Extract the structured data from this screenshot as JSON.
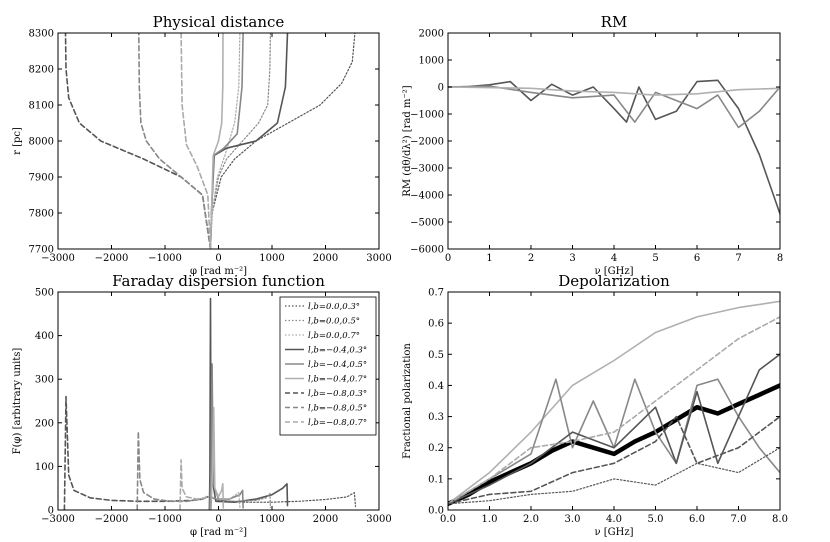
{
  "chart_data": [
    {
      "id": "physical",
      "type": "line",
      "title": "Physical distance",
      "xlabel": "φ [rad m⁻²]",
      "ylabel": "r [pc]",
      "xlim": [
        -3000,
        3000
      ],
      "ylim": [
        7700,
        8300
      ],
      "xticks": [
        -3000,
        -2000,
        -1000,
        0,
        1000,
        2000,
        3000
      ],
      "yticks": [
        7700,
        7800,
        7900,
        8000,
        8100,
        8200,
        8300
      ],
      "series": [
        {
          "name": "l,b=0.0,0.3°",
          "x": [
            -150,
            -120,
            50,
            300,
            700,
            1300,
            1900,
            2300,
            2500,
            2550
          ],
          "y": [
            7700,
            7800,
            7900,
            7950,
            8000,
            8050,
            8100,
            8160,
            8220,
            8300
          ]
        },
        {
          "name": "l,b=0.0,0.5°",
          "x": [
            -150,
            -120,
            0,
            150,
            450,
            750,
            920,
            960,
            970
          ],
          "y": [
            7700,
            7800,
            7900,
            7950,
            8000,
            8050,
            8100,
            8200,
            8300
          ]
        },
        {
          "name": "l,b=0.0,0.7°",
          "x": [
            -150,
            -120,
            -20,
            120,
            300,
            380,
            400
          ],
          "y": [
            7700,
            7800,
            7900,
            7960,
            8050,
            8150,
            8300
          ]
        },
        {
          "name": "l,b=-0.4,0.3°",
          "x": [
            -150,
            -130,
            -80,
            150,
            700,
            1100,
            1250,
            1290
          ],
          "y": [
            7700,
            7800,
            7960,
            7980,
            8000,
            8050,
            8150,
            8300
          ]
        },
        {
          "name": "l,b=-0.4,0.5°",
          "x": [
            -150,
            -130,
            -90,
            100,
            350,
            440,
            460
          ],
          "y": [
            7700,
            7800,
            7960,
            7980,
            8020,
            8150,
            8300
          ]
        },
        {
          "name": "l,b=-0.4,0.7°",
          "x": [
            -150,
            -130,
            -100,
            0,
            60,
            80,
            85
          ],
          "y": [
            7700,
            7800,
            7960,
            8000,
            8050,
            8150,
            8300
          ]
        },
        {
          "name": "l,b=-0.8,0.3°",
          "x": [
            -150,
            -300,
            -700,
            -1400,
            -2200,
            -2600,
            -2800,
            -2850,
            -2860
          ],
          "y": [
            7700,
            7850,
            7900,
            7950,
            8000,
            8050,
            8120,
            8200,
            8300
          ]
        },
        {
          "name": "l,b=-0.8,0.5°",
          "x": [
            -150,
            -300,
            -700,
            -1100,
            -1350,
            -1450,
            -1480,
            -1490
          ],
          "y": [
            7700,
            7850,
            7900,
            7950,
            8000,
            8050,
            8150,
            8300
          ]
        },
        {
          "name": "l,b=-0.8,0.7°",
          "x": [
            -150,
            -200,
            -400,
            -600,
            -680,
            -700
          ],
          "y": [
            7700,
            7850,
            7930,
            7990,
            8100,
            8300
          ]
        }
      ]
    },
    {
      "id": "rm",
      "type": "line",
      "title": "RM",
      "xlabel": "ν [GHz]",
      "ylabel": "RM (dθ/dλ²) [rad m⁻²]",
      "xlim": [
        0,
        8
      ],
      "ylim": [
        -6000,
        2000
      ],
      "xticks": [
        0,
        1,
        2,
        3,
        4,
        5,
        6,
        7,
        8
      ],
      "yticks": [
        -6000,
        -5000,
        -4000,
        -3000,
        -2000,
        -1000,
        0,
        1000,
        2000
      ],
      "series": [
        {
          "name": "l,b=-0.4,0.3°",
          "x": [
            0,
            0.5,
            1,
            1.5,
            2,
            2.5,
            3,
            3.5,
            4,
            4.3,
            4.6,
            5,
            5.5,
            6,
            6.5,
            7,
            7.5,
            8
          ],
          "y": [
            0,
            20,
            80,
            200,
            -500,
            100,
            -300,
            0,
            -800,
            -1300,
            0,
            -1200,
            -900,
            200,
            250,
            -800,
            -2500,
            -4700
          ]
        },
        {
          "name": "l,b=-0.4,0.5°",
          "x": [
            0,
            1,
            2,
            3,
            4,
            4.5,
            5,
            5.5,
            6,
            6.5,
            7,
            7.5,
            8
          ],
          "y": [
            0,
            30,
            -200,
            -400,
            -300,
            -1300,
            -200,
            -500,
            -800,
            -300,
            -1500,
            -900,
            0
          ]
        },
        {
          "name": "l,b=-0.4,0.7°",
          "x": [
            0,
            2,
            3,
            4,
            5,
            6,
            7,
            8
          ],
          "y": [
            0,
            -50,
            -150,
            -200,
            -300,
            -250,
            -100,
            -50
          ]
        }
      ]
    },
    {
      "id": "faraday",
      "type": "line",
      "title": "Faraday dispersion function",
      "xlabel": "φ [rad m⁻²]",
      "ylabel": "F(φ) [arbitrary units]",
      "xlim": [
        -3000,
        3000
      ],
      "ylim": [
        0,
        500
      ],
      "xticks": [
        -3000,
        -2000,
        -1000,
        0,
        1000,
        2000,
        3000
      ],
      "yticks": [
        0,
        100,
        200,
        300,
        400,
        500
      ],
      "legend": [
        "l,b=0.0,0.3°",
        "l,b=0.0,0.5°",
        "l,b=0.0,0.7°",
        "l,b=−0.4,0.3°",
        "l,b=−0.4,0.5°",
        "l,b=−0.4,0.7°",
        "l,b=−0.8,0.3°",
        "l,b=−0.8,0.5°",
        "l,b=−0.8,0.7°"
      ],
      "series": [
        {
          "name": "l,b=-0.8,0.3°",
          "x": [
            -2880,
            -2850,
            -2800,
            -2700,
            -2400,
            -2000,
            -1500,
            -1000,
            -500,
            -300,
            -200
          ],
          "y": [
            0,
            260,
            80,
            45,
            28,
            22,
            20,
            20,
            22,
            25,
            30
          ]
        },
        {
          "name": "l,b=-0.8,0.5°",
          "x": [
            -1520,
            -1500,
            -1470,
            -1400,
            -1200,
            -900,
            -600,
            -300,
            -200
          ],
          "y": [
            0,
            180,
            70,
            40,
            25,
            20,
            20,
            25,
            30
          ]
        },
        {
          "name": "l,b=-0.8,0.7°",
          "x": [
            -720,
            -700,
            -680,
            -600,
            -400,
            -250,
            -200
          ],
          "y": [
            0,
            115,
            50,
            30,
            25,
            28,
            35
          ]
        },
        {
          "name": "l,b=-0.4,0.3°",
          "x": [
            -170,
            -160,
            -150,
            -140,
            -50,
            300,
            700,
            1000,
            1200,
            1280,
            1290
          ],
          "y": [
            0,
            80,
            485,
            90,
            20,
            18,
            25,
            35,
            50,
            60,
            10
          ]
        },
        {
          "name": "l,b=-0.4,0.5°",
          "x": [
            -160,
            -140,
            -120,
            -100,
            0,
            200,
            400,
            450,
            460
          ],
          "y": [
            0,
            90,
            335,
            60,
            25,
            25,
            35,
            45,
            5
          ]
        },
        {
          "name": "l,b=-0.4,0.7°",
          "x": [
            -140,
            -110,
            -90,
            -70,
            0,
            60,
            80,
            90
          ],
          "y": [
            0,
            100,
            235,
            50,
            30,
            45,
            60,
            5
          ]
        },
        {
          "name": "l,b=0.0,0.3°",
          "x": [
            -150,
            -130,
            0,
            500,
            1000,
            1500,
            2000,
            2400,
            2540,
            2560
          ],
          "y": [
            0,
            30,
            22,
            18,
            18,
            20,
            24,
            30,
            40,
            8
          ]
        },
        {
          "name": "l,b=0.0,0.5°",
          "x": [
            -150,
            -130,
            0,
            300,
            700,
            900,
            960,
            970
          ],
          "y": [
            0,
            28,
            22,
            20,
            22,
            28,
            38,
            6
          ]
        },
        {
          "name": "l,b=0.0,0.7°",
          "x": [
            -150,
            -130,
            0,
            200,
            380,
            400
          ],
          "y": [
            0,
            30,
            25,
            25,
            40,
            6
          ]
        }
      ]
    },
    {
      "id": "depol",
      "type": "line",
      "title": "Depolarization",
      "xlabel": "ν [GHz]",
      "ylabel": "Fractional polarization",
      "xlim": [
        0,
        8
      ],
      "ylim": [
        0,
        0.7
      ],
      "xticks": [
        0,
        1,
        2,
        3,
        4,
        5,
        6,
        7,
        8
      ],
      "yticks": [
        0.0,
        0.1,
        0.2,
        0.3,
        0.4,
        0.5,
        0.6,
        0.7
      ],
      "series": [
        {
          "name": "mean (thick black)",
          "x": [
            0,
            0.5,
            1,
            1.5,
            2,
            2.5,
            3,
            3.5,
            4,
            4.5,
            5,
            5.5,
            6,
            6.5,
            7,
            7.5,
            8
          ],
          "y": [
            0.02,
            0.05,
            0.09,
            0.12,
            0.15,
            0.19,
            0.22,
            0.2,
            0.18,
            0.22,
            0.25,
            0.29,
            0.33,
            0.31,
            0.34,
            0.37,
            0.4
          ]
        },
        {
          "name": "l,b=-0.4,0.7°",
          "x": [
            0,
            1,
            2,
            3,
            4,
            5,
            6,
            7,
            8
          ],
          "y": [
            0.02,
            0.12,
            0.25,
            0.4,
            0.48,
            0.57,
            0.62,
            0.65,
            0.67
          ]
        },
        {
          "name": "l,b=-0.4,0.5°",
          "x": [
            0,
            1,
            2,
            2.6,
            3,
            3.5,
            4,
            4.5,
            5,
            5.5,
            6,
            6.5,
            7,
            7.5,
            8
          ],
          "y": [
            0.02,
            0.1,
            0.18,
            0.42,
            0.2,
            0.35,
            0.2,
            0.42,
            0.25,
            0.15,
            0.4,
            0.42,
            0.3,
            0.2,
            0.12
          ]
        },
        {
          "name": "l,b=-0.4,0.3°",
          "x": [
            0,
            1,
            2,
            3,
            4,
            5,
            5.5,
            6,
            6.5,
            7,
            7.5,
            8
          ],
          "y": [
            0.02,
            0.08,
            0.15,
            0.25,
            0.2,
            0.33,
            0.15,
            0.38,
            0.15,
            0.3,
            0.45,
            0.5
          ]
        },
        {
          "name": "l,b=-0.8,0.7°",
          "x": [
            0,
            1,
            2,
            3,
            4,
            5,
            6,
            7,
            8
          ],
          "y": [
            0.02,
            0.1,
            0.2,
            0.22,
            0.25,
            0.35,
            0.45,
            0.55,
            0.62
          ]
        },
        {
          "name": "l,b=-0.8,0.3°",
          "x": [
            0,
            1,
            2,
            3,
            4,
            5,
            5.5,
            6,
            7,
            8
          ],
          "y": [
            0.02,
            0.05,
            0.06,
            0.12,
            0.15,
            0.22,
            0.3,
            0.15,
            0.2,
            0.3
          ]
        },
        {
          "name": "l,b=0.0,0.3°",
          "x": [
            0,
            1,
            2,
            3,
            4,
            5,
            6,
            7,
            8
          ],
          "y": [
            0.02,
            0.03,
            0.05,
            0.06,
            0.1,
            0.08,
            0.15,
            0.12,
            0.2
          ]
        }
      ]
    }
  ]
}
